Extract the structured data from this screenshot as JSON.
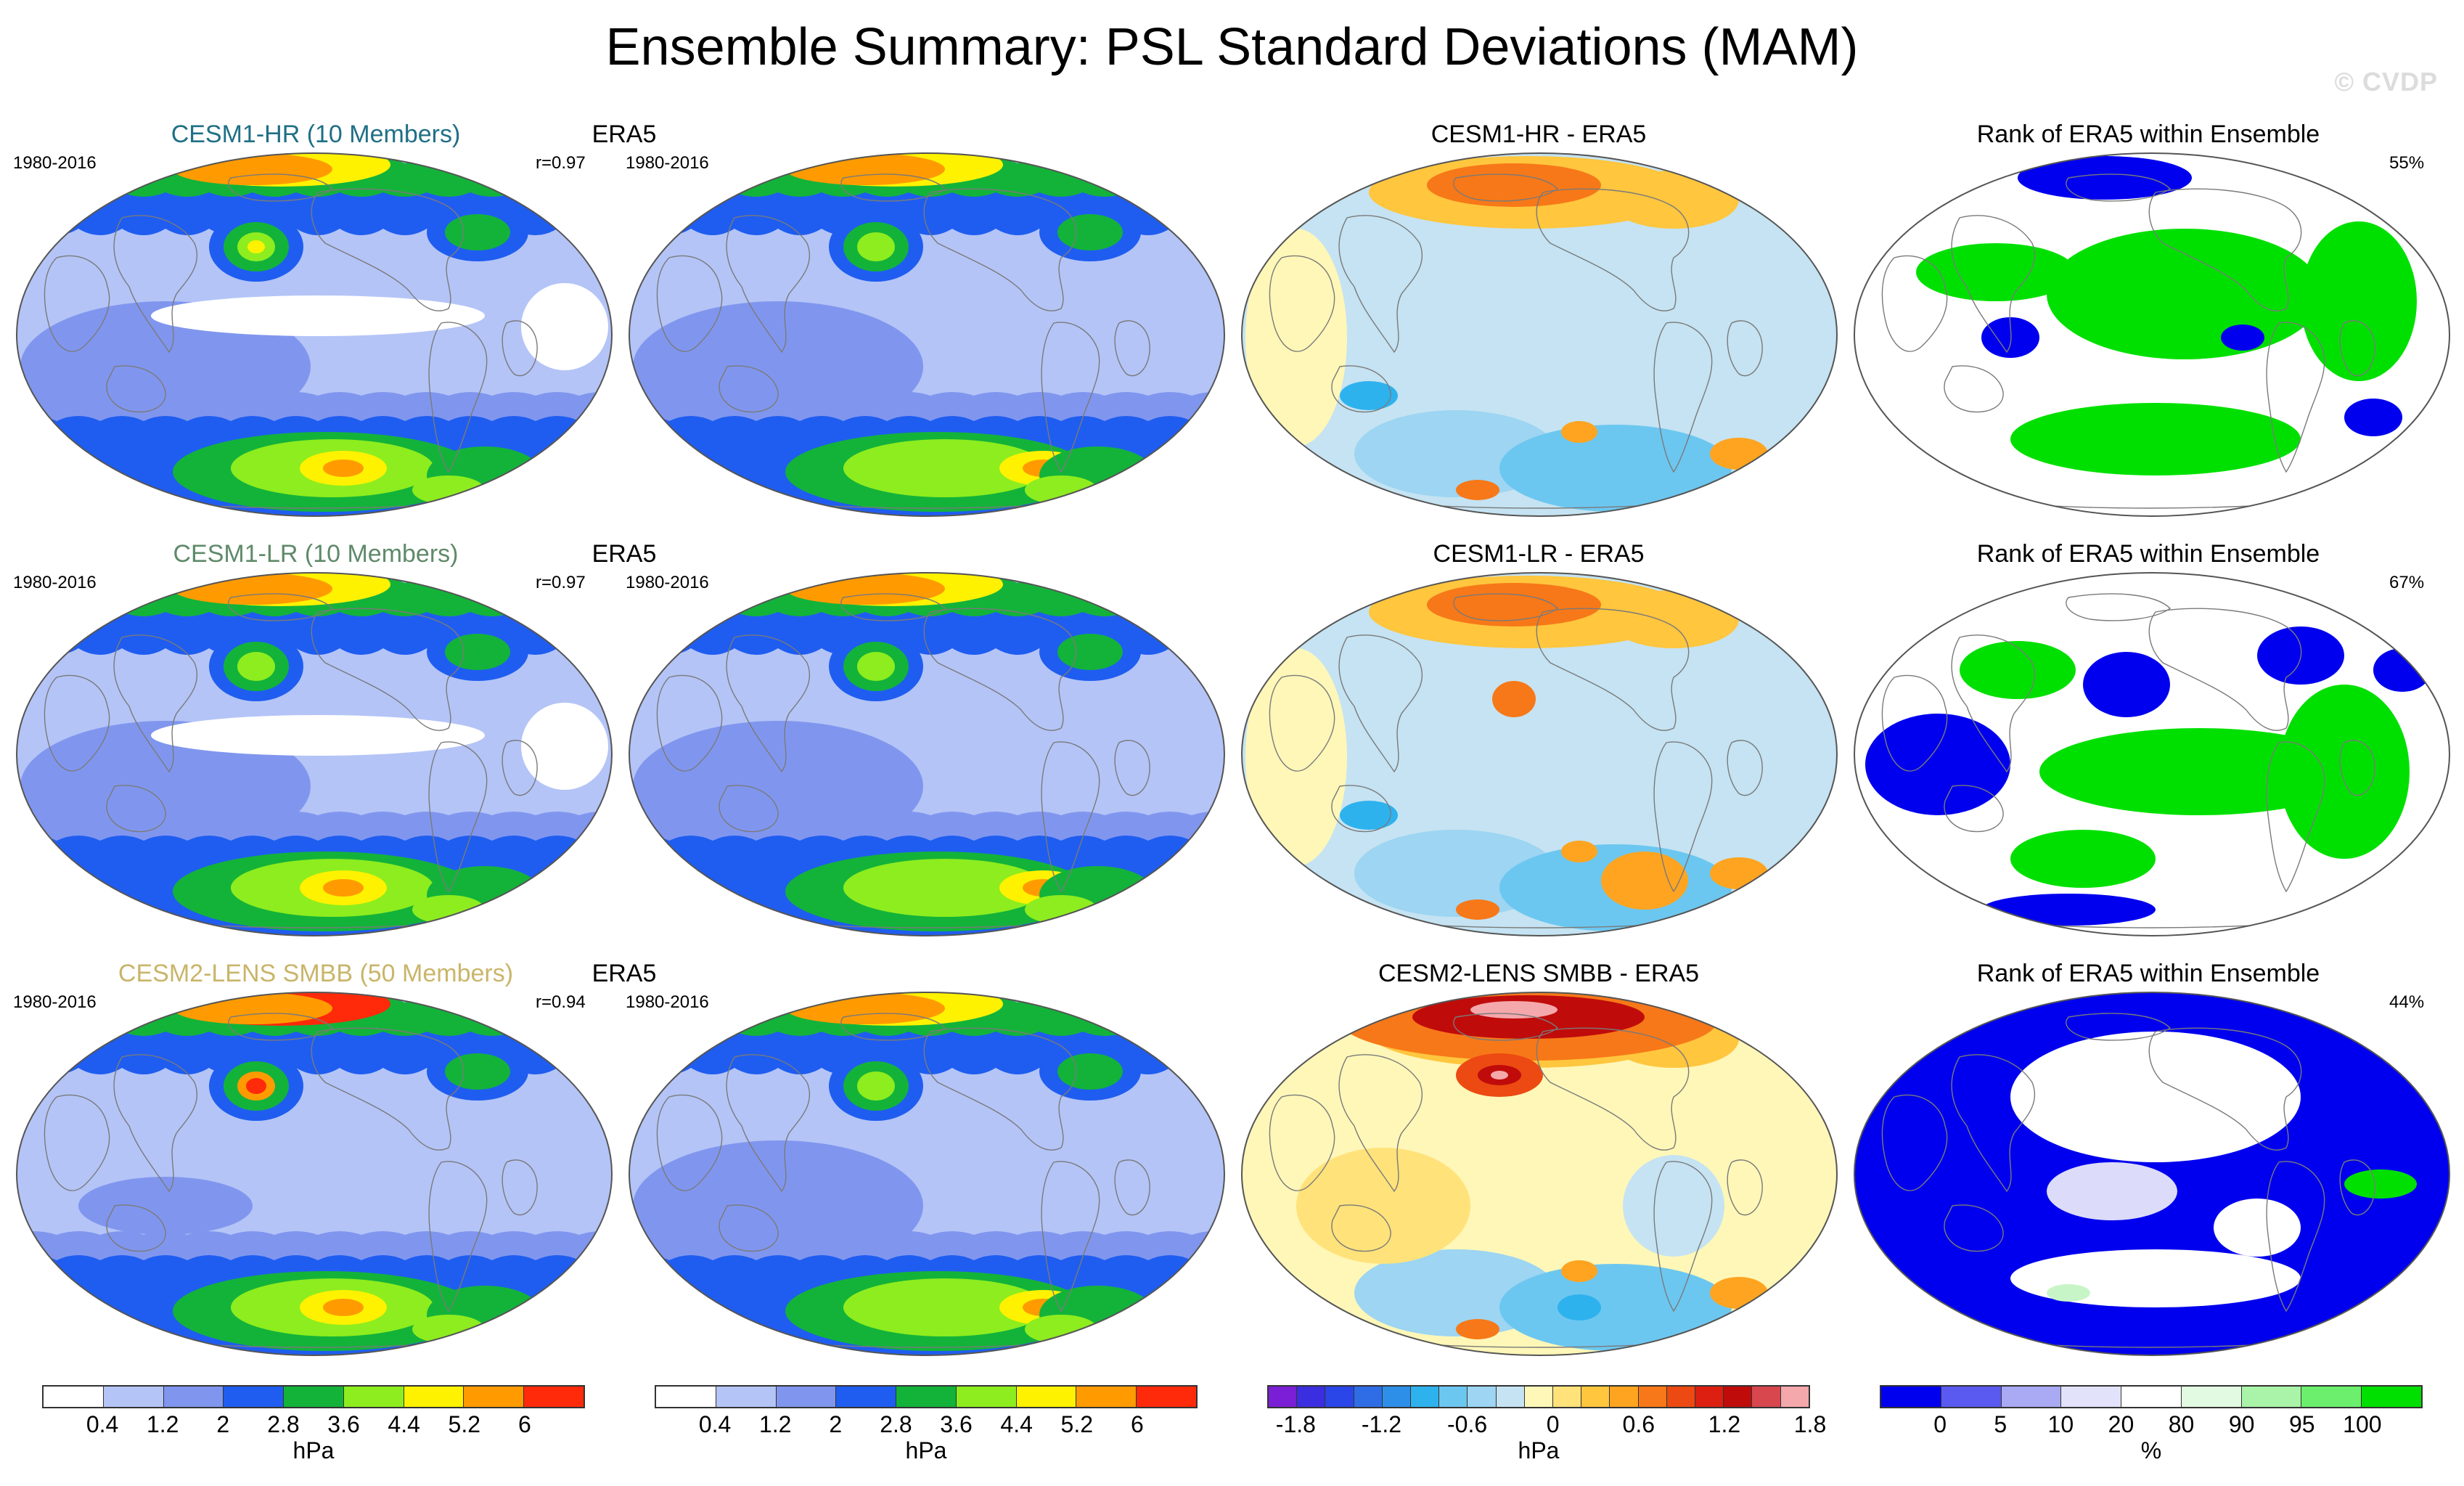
{
  "title": "Ensemble Summary: PSL Standard Deviations (MAM)",
  "watermark": "© CVDP",
  "rows": [
    {
      "ensemble": {
        "title": "CESM1-HR (10 Members)",
        "title_color": "#1f6f86",
        "period": "1980-2016",
        "r": "r=0.97"
      },
      "obs": {
        "title": "ERA5",
        "period": "1980-2016"
      },
      "diff": {
        "title": "CESM1-HR - ERA5"
      },
      "rank": {
        "title": "Rank of ERA5 within Ensemble",
        "pct": "55%"
      }
    },
    {
      "ensemble": {
        "title": "CESM1-LR (10 Members)",
        "title_color": "#5f8a6a",
        "period": "1980-2016",
        "r": "r=0.97"
      },
      "obs": {
        "title": "ERA5",
        "period": "1980-2016"
      },
      "diff": {
        "title": "CESM1-LR - ERA5"
      },
      "rank": {
        "title": "Rank of ERA5 within Ensemble",
        "pct": "67%"
      }
    },
    {
      "ensemble": {
        "title": "CESM2-LENS SMBB (50 Members)",
        "title_color": "#c9b56a",
        "period": "1980-2016",
        "r": "r=0.94"
      },
      "obs": {
        "title": "ERA5",
        "period": "1980-2016"
      },
      "diff": {
        "title": "CESM2-LENS SMBB - ERA5"
      },
      "rank": {
        "title": "Rank of ERA5 within Ensemble",
        "pct": "44%"
      }
    }
  ],
  "colorbars": {
    "std": {
      "colors": [
        "#ffffff",
        "#b4c4f7",
        "#8096ee",
        "#1f5df0",
        "#13b33a",
        "#8eed1e",
        "#fff200",
        "#ff9b00",
        "#ff2a0a"
      ],
      "ticks": [
        "0.4",
        "1.2",
        "2",
        "2.8",
        "3.6",
        "4.4",
        "5.2",
        "6"
      ],
      "unit": "hPa"
    },
    "diff": {
      "colors": [
        "#7b1fd6",
        "#3b2ee0",
        "#2a45e8",
        "#2f6de6",
        "#2e8fe8",
        "#2eb2ee",
        "#6cc7f0",
        "#9dd5f2",
        "#c5e3f2",
        "#fff7b8",
        "#ffe27a",
        "#ffc63e",
        "#ffa420",
        "#f77818",
        "#ec4a12",
        "#dc1f10",
        "#c00b0b",
        "#d8474e",
        "#f4a8ac"
      ],
      "ticks": [
        "-1.8",
        "-1.2",
        "-0.6",
        "0",
        "0.6",
        "1.2",
        "1.8"
      ],
      "unit": "hPa"
    },
    "rank": {
      "colors": [
        "#0000ee",
        "#5a5af0",
        "#a9a9f4",
        "#e2e2fa",
        "#ffffff",
        "#e2fae2",
        "#a9f4a9",
        "#6cef6c",
        "#00e000"
      ],
      "ticks": [
        "0",
        "5",
        "10",
        "20",
        "80",
        "90",
        "95",
        "100"
      ],
      "unit": "%"
    }
  },
  "map_colors": {
    "std": [
      "#ffffff",
      "#b4c4f7",
      "#8096ee",
      "#1f5df0",
      "#13b33a",
      "#8eed1e",
      "#fff200",
      "#ff9b00",
      "#ff2a0a"
    ],
    "diff_cool": [
      "#c5e3f2",
      "#9dd5f2",
      "#6cc7f0",
      "#2eb2ee"
    ],
    "diff_warm": [
      "#fff7b8",
      "#ffe27a",
      "#ffc63e",
      "#ffa420",
      "#f77818",
      "#ec4a12",
      "#c00b0b"
    ],
    "rank_low": "#0000ee",
    "rank_high": "#00e000",
    "rank_light": "#dcdcfa"
  }
}
